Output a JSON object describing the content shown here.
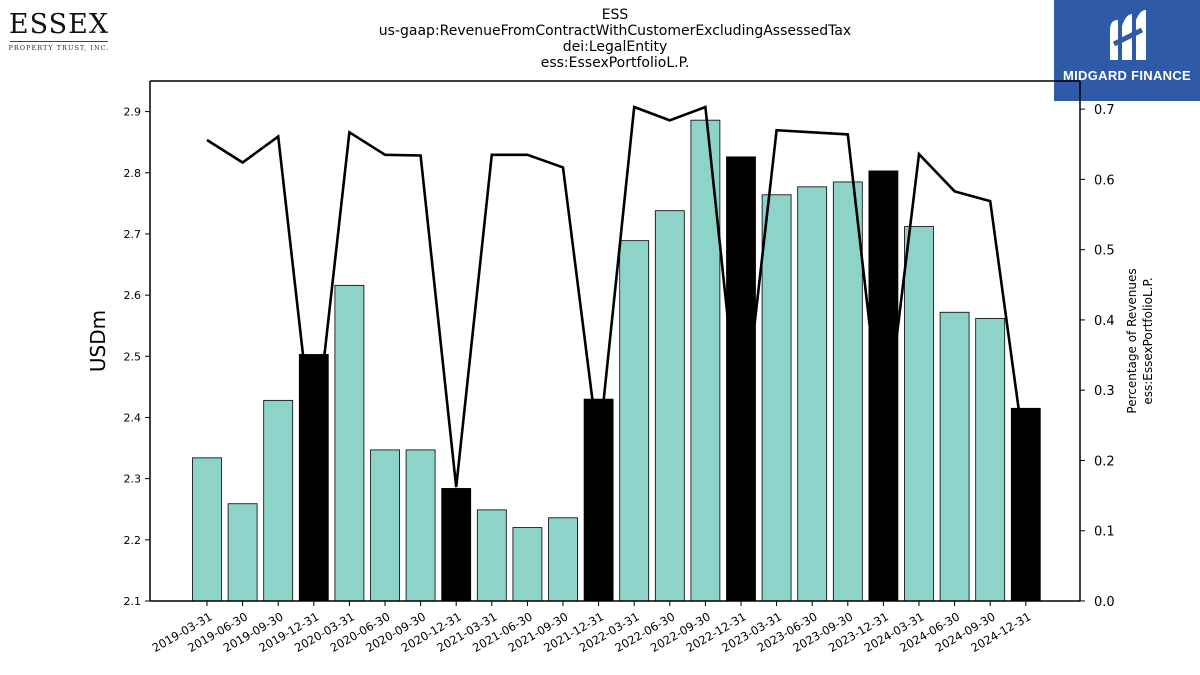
{
  "title_lines": [
    "ESS",
    "us-gaap:RevenueFromContractWithCustomerExcludingAssessedTax",
    "dei:LegalEntity",
    "ess:EssexPortfolioL.P."
  ],
  "logo_left": {
    "word": "ESSEX",
    "subtitle": "PROPERTY TRUST, INC."
  },
  "logo_right": {
    "name": "MIDGARD FINANCE"
  },
  "colors": {
    "bar_default": "#8dd3c7",
    "bar_q4": "#000000",
    "line": "#000000"
  },
  "chart_data": {
    "type": "bar",
    "categories": [
      "2019-03-31",
      "2019-06-30",
      "2019-09-30",
      "2019-12-31",
      "2020-03-31",
      "2020-06-30",
      "2020-09-30",
      "2020-12-31",
      "2021-03-31",
      "2021-06-30",
      "2021-09-30",
      "2021-12-31",
      "2022-03-31",
      "2022-06-30",
      "2022-09-30",
      "2022-12-31",
      "2023-03-31",
      "2023-06-30",
      "2023-09-30",
      "2023-12-31",
      "2024-03-31",
      "2024-06-30",
      "2024-09-30",
      "2024-12-31"
    ],
    "series": [
      {
        "axis": "left",
        "type": "bar",
        "values": [
          2.334,
          2.259,
          2.428,
          2.503,
          2.616,
          2.347,
          2.347,
          2.284,
          2.249,
          2.22,
          2.236,
          2.43,
          2.689,
          2.738,
          2.886,
          2.826,
          2.764,
          2.777,
          2.785,
          2.803,
          2.712,
          2.572,
          2.562,
          2.415
        ]
      },
      {
        "axis": "right",
        "type": "line",
        "values": [
          0.656,
          0.624,
          0.661,
          0.215,
          0.667,
          0.635,
          0.634,
          0.162,
          0.635,
          0.635,
          0.617,
          0.217,
          0.703,
          0.684,
          0.703,
          0.224,
          0.67,
          0.667,
          0.664,
          0.221,
          0.636,
          0.583,
          0.569,
          0.199
        ]
      }
    ],
    "ylabel": "USDm",
    "y2label": [
      "Percentage of Revenues",
      "ess:EssexPortfolioL.P."
    ],
    "ylim": [
      2.1,
      2.95
    ],
    "y2lim": [
      0.0,
      0.74
    ],
    "yticks": [
      "2.1",
      "2.2",
      "2.3",
      "2.4",
      "2.5",
      "2.6",
      "2.7",
      "2.8",
      "2.9"
    ],
    "y2ticks": [
      "0.0",
      "0.1",
      "0.2",
      "0.3",
      "0.4",
      "0.5",
      "0.6",
      "0.7"
    ],
    "grid": false,
    "legend": "none"
  }
}
